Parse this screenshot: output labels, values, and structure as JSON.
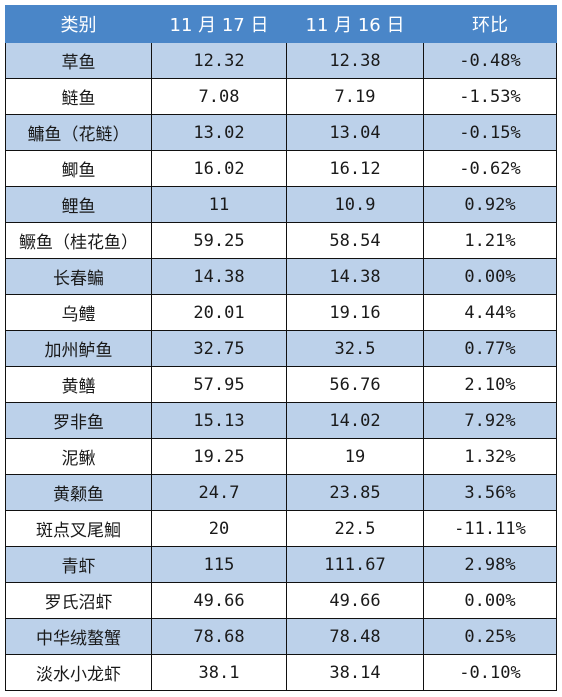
{
  "table": {
    "headers": [
      "类别",
      "11 月 17 日",
      "11 月 16 日",
      "环比"
    ],
    "rows": [
      {
        "name": "草鱼",
        "d17": "12.32",
        "d16": "12.38",
        "change": "-0.48%"
      },
      {
        "name": "鲢鱼",
        "d17": "7.08",
        "d16": "7.19",
        "change": "-1.53%"
      },
      {
        "name": "鳙鱼（花鲢）",
        "d17": "13.02",
        "d16": "13.04",
        "change": "-0.15%"
      },
      {
        "name": "鲫鱼",
        "d17": "16.02",
        "d16": "16.12",
        "change": "-0.62%"
      },
      {
        "name": "鲤鱼",
        "d17": "11",
        "d16": "10.9",
        "change": "0.92%"
      },
      {
        "name": "鳜鱼（桂花鱼）",
        "d17": "59.25",
        "d16": "58.54",
        "change": "1.21%"
      },
      {
        "name": "长春鳊",
        "d17": "14.38",
        "d16": "14.38",
        "change": "0.00%"
      },
      {
        "name": "乌鳢",
        "d17": "20.01",
        "d16": "19.16",
        "change": "4.44%"
      },
      {
        "name": "加州鲈鱼",
        "d17": "32.75",
        "d16": "32.5",
        "change": "0.77%"
      },
      {
        "name": "黄鳝",
        "d17": "57.95",
        "d16": "56.76",
        "change": "2.10%"
      },
      {
        "name": "罗非鱼",
        "d17": "15.13",
        "d16": "14.02",
        "change": "7.92%"
      },
      {
        "name": "泥鳅",
        "d17": "19.25",
        "d16": "19",
        "change": "1.32%"
      },
      {
        "name": "黄颡鱼",
        "d17": "24.7",
        "d16": "23.85",
        "change": "3.56%"
      },
      {
        "name": "斑点叉尾鮰",
        "d17": "20",
        "d16": "22.5",
        "change": "-11.11%"
      },
      {
        "name": "青虾",
        "d17": "115",
        "d16": "111.67",
        "change": "2.98%"
      },
      {
        "name": "罗氏沼虾",
        "d17": "49.66",
        "d16": "49.66",
        "change": "0.00%"
      },
      {
        "name": "中华绒螯蟹",
        "d17": "78.68",
        "d16": "78.48",
        "change": "0.25%"
      },
      {
        "name": "淡水小龙虾",
        "d17": "38.1",
        "d16": "38.14",
        "change": "-0.10%"
      }
    ]
  },
  "colors": {
    "header_bg": "#4a86c8",
    "header_text": "#ffffff",
    "row_shaded": "#bcd1ea",
    "row_plain": "#ffffff"
  }
}
